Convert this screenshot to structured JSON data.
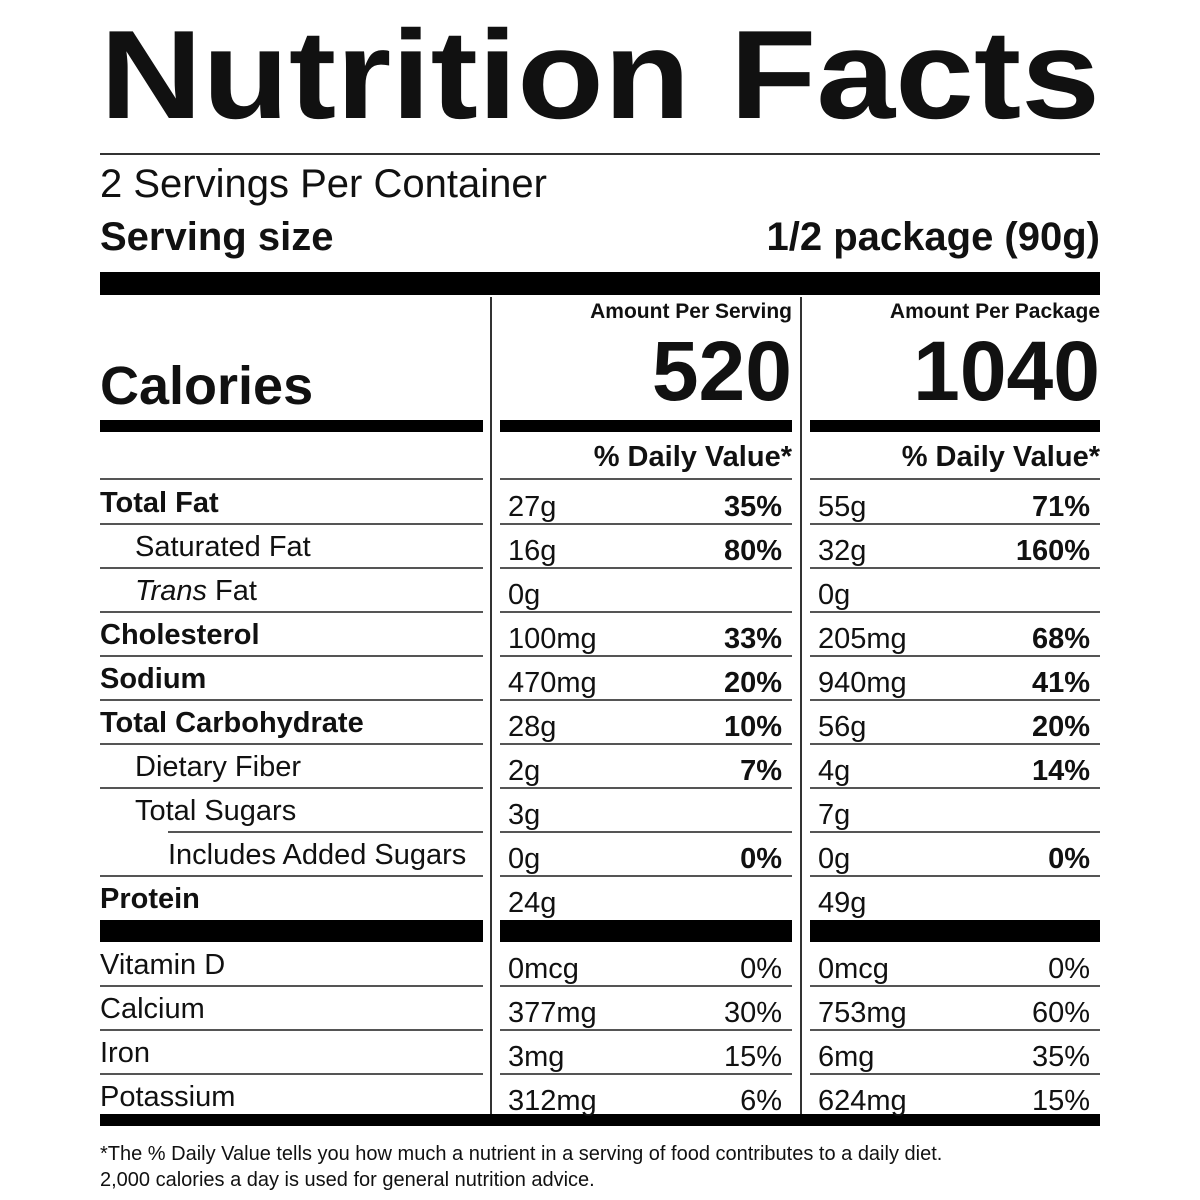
{
  "title": "Nutrition Facts",
  "servings": "2 Servings Per Container",
  "serving_size": {
    "label": "Serving size",
    "value": "1/2 package (90g)"
  },
  "calories": {
    "label": "Calories",
    "columns": [
      {
        "header": "Amount Per Serving",
        "value": 520,
        "dv_header": "% Daily Value*"
      },
      {
        "header": "Amount Per Package",
        "value": 1040,
        "dv_header": "% Daily Value*"
      }
    ]
  },
  "nutrients": [
    {
      "name": "Total Fat",
      "serving": [
        "27g",
        "35%"
      ],
      "package": [
        "55g",
        "71%"
      ]
    },
    {
      "name": "Saturated Fat",
      "serving": [
        "16g",
        "80%"
      ],
      "package": [
        "32g",
        "160%"
      ]
    },
    {
      "name_italic": "Trans",
      "name": " Fat",
      "serving": [
        "0g"
      ],
      "package": [
        "0g"
      ]
    },
    {
      "name": "Cholesterol",
      "serving": [
        "100mg",
        "33%"
      ],
      "package": [
        "205mg",
        "68%"
      ]
    },
    {
      "name": "Sodium",
      "serving": [
        "470mg",
        "20%"
      ],
      "package": [
        "940mg",
        "41%"
      ]
    },
    {
      "name": "Total Carbohydrate",
      "serving": [
        "28g",
        "10%"
      ],
      "package": [
        "56g",
        "20%"
      ]
    },
    {
      "name": "Dietary Fiber",
      "serving": [
        "2g",
        "7%"
      ],
      "package": [
        "4g",
        "14%"
      ]
    },
    {
      "name": "Total Sugars",
      "serving": [
        "3g"
      ],
      "package": [
        "7g"
      ]
    },
    {
      "name": "Includes Added Sugars",
      "serving": [
        "0g",
        "0%"
      ],
      "package": [
        "0g",
        "0%"
      ]
    },
    {
      "name": "Protein",
      "serving": [
        "24g"
      ],
      "package": [
        "49g"
      ]
    }
  ],
  "vitamins": [
    {
      "name": "Vitamin D",
      "serving": [
        "0mcg",
        "0%"
      ],
      "package": [
        "0mcg",
        "0%"
      ]
    },
    {
      "name": "Calcium",
      "serving": [
        "377mg",
        "30%"
      ],
      "package": [
        "753mg",
        "60%"
      ]
    },
    {
      "name": "Iron",
      "serving": [
        "3mg",
        "15%"
      ],
      "package": [
        "6mg",
        "35%"
      ]
    },
    {
      "name": "Potassium",
      "serving": [
        "312mg",
        "6%"
      ],
      "package": [
        "624mg",
        "15%"
      ]
    }
  ],
  "footnote": [
    "*The % Daily Value tells you how much a nutrient in a serving of food contributes to a daily diet.",
    "2,000 calories a day is used for general nutrition advice."
  ]
}
